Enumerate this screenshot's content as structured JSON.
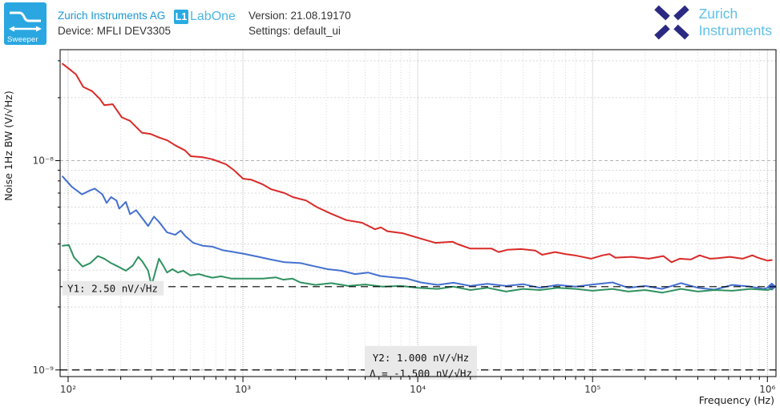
{
  "header": {
    "app_icon_label": "Sweeper",
    "brand": "Zurich Instruments AG",
    "device": "Device: MFLI DEV3305",
    "labone_glyph": "L1",
    "labone_text": "LabOne",
    "version": "Version: 21.08.19170",
    "settings": "Settings: default_ui",
    "logo_line1": "Zurich",
    "logo_line2": "Instruments"
  },
  "colors": {
    "labone_blue": "#29abe2",
    "brand_text_blue": "#1b98d5",
    "logo_navy": "#2b2a82",
    "logo_light_blue": "#5fc0e9",
    "grid_major": "#b3b3b3",
    "grid_minor": "#d7d7d7",
    "cursor_box_bg": "#e9e9e9"
  },
  "chart_data": {
    "type": "line",
    "x_scale": "log",
    "y_scale": "log",
    "xlabel": "Frequency (Hz)",
    "ylabel": "Noise 1Hz BW (V/√Hz)",
    "xlim": [
      90,
      1120000
    ],
    "ylim": [
      9.3e-10,
      3.39e-08
    ],
    "grid": true,
    "legend": "none",
    "x_tick_exponents": [
      2,
      3,
      4,
      5,
      6
    ],
    "x_tick_labels": [
      "10²",
      "10³",
      "10⁴",
      "10⁵",
      "10⁶"
    ],
    "y_tick_exponents": [
      -8,
      -9
    ],
    "y_tick_labels": [
      "10⁻⁸",
      "10⁻⁹"
    ],
    "cursors": {
      "y1": {
        "value": 2.5e-09,
        "label": "Y1: 2.50 nV/√Hz"
      },
      "y2": {
        "value": 1e-09,
        "label": "Y2: 1.000 nV/√Hz",
        "delta_label": "Δ = -1.500 nV/√Hz"
      }
    },
    "series": [
      {
        "name": "red-trace",
        "color": "#d92a28",
        "points": [
          [
            93,
            2.9e-08
          ],
          [
            101,
            2.75e-08
          ],
          [
            111,
            2.58e-08
          ],
          [
            122,
            2.25e-08
          ],
          [
            137,
            2.15e-08
          ],
          [
            152,
            1.97e-08
          ],
          [
            161,
            1.84e-08
          ],
          [
            180,
            1.86e-08
          ],
          [
            203,
            1.61e-08
          ],
          [
            226,
            1.55e-08
          ],
          [
            264,
            1.36e-08
          ],
          [
            297,
            1.34e-08
          ],
          [
            331,
            1.29e-08
          ],
          [
            369,
            1.25e-08
          ],
          [
            412,
            1.18e-08
          ],
          [
            466,
            1.12e-08
          ],
          [
            503,
            1.05e-08
          ],
          [
            583,
            1.04e-08
          ],
          [
            669,
            1.015e-08
          ],
          [
            800,
            9.6e-09
          ],
          [
            890,
            9e-09
          ],
          [
            1000,
            8.2e-09
          ],
          [
            1120,
            8.1e-09
          ],
          [
            1300,
            7.7e-09
          ],
          [
            1450,
            7.3e-09
          ],
          [
            1730,
            7e-09
          ],
          [
            1930,
            6.7e-09
          ],
          [
            2300,
            6.45e-09
          ],
          [
            2650,
            6e-09
          ],
          [
            3160,
            5.6e-09
          ],
          [
            3900,
            5.2e-09
          ],
          [
            4800,
            5.05e-09
          ],
          [
            5700,
            4.7e-09
          ],
          [
            6150,
            4.8e-09
          ],
          [
            6700,
            4.6e-09
          ],
          [
            8200,
            4.5e-09
          ],
          [
            10300,
            4.25e-09
          ],
          [
            12600,
            4.05e-09
          ],
          [
            15800,
            4.1e-09
          ],
          [
            16800,
            4e-09
          ],
          [
            20000,
            3.8e-09
          ],
          [
            26500,
            3.8e-09
          ],
          [
            29000,
            3.66e-09
          ],
          [
            32500,
            3.75e-09
          ],
          [
            39000,
            3.78e-09
          ],
          [
            47000,
            3.72e-09
          ],
          [
            51500,
            3.55e-09
          ],
          [
            61000,
            3.66e-09
          ],
          [
            70000,
            3.58e-09
          ],
          [
            79000,
            3.53e-09
          ],
          [
            98000,
            3.4e-09
          ],
          [
            114000,
            3.53e-09
          ],
          [
            125000,
            3.58e-09
          ],
          [
            135000,
            3.44e-09
          ],
          [
            167000,
            3.47e-09
          ],
          [
            210000,
            3.4e-09
          ],
          [
            254000,
            3.5e-09
          ],
          [
            283000,
            3.27e-09
          ],
          [
            315000,
            3.4e-09
          ],
          [
            365000,
            3.37e-09
          ],
          [
            410000,
            3.53e-09
          ],
          [
            470000,
            3.4e-09
          ],
          [
            520000,
            3.42e-09
          ],
          [
            610000,
            3.47e-09
          ],
          [
            720000,
            3.4e-09
          ],
          [
            820000,
            3.53e-09
          ],
          [
            880000,
            3.44e-09
          ],
          [
            1000000,
            3.33e-09
          ],
          [
            1060000,
            3.35e-09
          ]
        ]
      },
      {
        "name": "blue-trace",
        "color": "#4470cf",
        "end_marker": true,
        "points": [
          [
            93,
            8.4e-09
          ],
          [
            105,
            7.5e-09
          ],
          [
            120,
            6.9e-09
          ],
          [
            133,
            7.2e-09
          ],
          [
            142,
            7.35e-09
          ],
          [
            157,
            6.9e-09
          ],
          [
            166,
            6.28e-09
          ],
          [
            176,
            6.7e-09
          ],
          [
            189,
            6.45e-09
          ],
          [
            196,
            5.9e-09
          ],
          [
            214,
            6.35e-09
          ],
          [
            226,
            5.55e-09
          ],
          [
            245,
            5.8e-09
          ],
          [
            266,
            5.3e-09
          ],
          [
            287,
            4.87e-09
          ],
          [
            310,
            5.4e-09
          ],
          [
            331,
            5.1e-09
          ],
          [
            368,
            4.54e-09
          ],
          [
            410,
            4.42e-09
          ],
          [
            440,
            4.63e-09
          ],
          [
            470,
            4.35e-09
          ],
          [
            520,
            4.05e-09
          ],
          [
            590,
            3.92e-09
          ],
          [
            670,
            3.88e-09
          ],
          [
            770,
            3.73e-09
          ],
          [
            890,
            3.66e-09
          ],
          [
            1030,
            3.58e-09
          ],
          [
            1230,
            3.47e-09
          ],
          [
            1440,
            3.37e-09
          ],
          [
            1730,
            3.27e-09
          ],
          [
            2130,
            3.24e-09
          ],
          [
            2560,
            3.13e-09
          ],
          [
            3050,
            3.03e-09
          ],
          [
            3650,
            2.98e-09
          ],
          [
            4380,
            2.87e-09
          ],
          [
            5200,
            2.92e-09
          ],
          [
            6100,
            2.81e-09
          ],
          [
            7300,
            2.77e-09
          ],
          [
            8700,
            2.73e-09
          ],
          [
            10400,
            2.62e-09
          ],
          [
            13000,
            2.55e-09
          ],
          [
            16000,
            2.61e-09
          ],
          [
            20000,
            2.52e-09
          ],
          [
            25000,
            2.58e-09
          ],
          [
            32000,
            2.52e-09
          ],
          [
            40000,
            2.57e-09
          ],
          [
            50000,
            2.47e-09
          ],
          [
            63000,
            2.55e-09
          ],
          [
            80000,
            2.5e-09
          ],
          [
            100000,
            2.56e-09
          ],
          [
            130000,
            2.62e-09
          ],
          [
            160000,
            2.47e-09
          ],
          [
            200000,
            2.52e-09
          ],
          [
            250000,
            2.44e-09
          ],
          [
            320000,
            2.6e-09
          ],
          [
            400000,
            2.47e-09
          ],
          [
            500000,
            2.42e-09
          ],
          [
            630000,
            2.55e-09
          ],
          [
            800000,
            2.5e-09
          ],
          [
            950000,
            2.44e-09
          ],
          [
            1060000,
            2.5e-09
          ]
        ]
      },
      {
        "name": "green-trace",
        "color": "#2f9160",
        "points": [
          [
            93,
            3.92e-09
          ],
          [
            101,
            3.95e-09
          ],
          [
            108,
            3.45e-09
          ],
          [
            121,
            3.12e-09
          ],
          [
            134,
            3.24e-09
          ],
          [
            148,
            3.5e-09
          ],
          [
            161,
            3.4e-09
          ],
          [
            176,
            3.24e-09
          ],
          [
            193,
            3.12e-09
          ],
          [
            214,
            2.98e-09
          ],
          [
            234,
            3.15e-09
          ],
          [
            252,
            3.47e-09
          ],
          [
            266,
            3.3e-09
          ],
          [
            287,
            2.98e-09
          ],
          [
            300,
            2.53e-09
          ],
          [
            331,
            3.4e-09
          ],
          [
            350,
            3.15e-09
          ],
          [
            368,
            2.92e-09
          ],
          [
            395,
            3.03e-09
          ],
          [
            425,
            2.92e-09
          ],
          [
            455,
            2.98e-09
          ],
          [
            500,
            2.83e-09
          ],
          [
            560,
            2.87e-09
          ],
          [
            620,
            2.8e-09
          ],
          [
            670,
            2.76e-09
          ],
          [
            750,
            2.8e-09
          ],
          [
            860,
            2.73e-09
          ],
          [
            1060,
            2.73e-09
          ],
          [
            1300,
            2.73e-09
          ],
          [
            1540,
            2.77e-09
          ],
          [
            1700,
            2.7e-09
          ],
          [
            1920,
            2.73e-09
          ],
          [
            2130,
            2.62e-09
          ],
          [
            2600,
            2.55e-09
          ],
          [
            3200,
            2.6e-09
          ],
          [
            4000,
            2.52e-09
          ],
          [
            5000,
            2.56e-09
          ],
          [
            6300,
            2.5e-09
          ],
          [
            8000,
            2.52e-09
          ],
          [
            10000,
            2.47e-09
          ],
          [
            13000,
            2.44e-09
          ],
          [
            16000,
            2.5e-09
          ],
          [
            20000,
            2.41e-09
          ],
          [
            25000,
            2.47e-09
          ],
          [
            32000,
            2.37e-09
          ],
          [
            40000,
            2.44e-09
          ],
          [
            50000,
            2.41e-09
          ],
          [
            63000,
            2.47e-09
          ],
          [
            80000,
            2.44e-09
          ],
          [
            100000,
            2.39e-09
          ],
          [
            130000,
            2.44e-09
          ],
          [
            160000,
            2.37e-09
          ],
          [
            200000,
            2.41e-09
          ],
          [
            250000,
            2.34e-09
          ],
          [
            320000,
            2.44e-09
          ],
          [
            400000,
            2.37e-09
          ],
          [
            500000,
            2.41e-09
          ],
          [
            630000,
            2.39e-09
          ],
          [
            800000,
            2.44e-09
          ],
          [
            1000000,
            2.41e-09
          ],
          [
            1060000,
            2.44e-09
          ]
        ]
      }
    ]
  }
}
